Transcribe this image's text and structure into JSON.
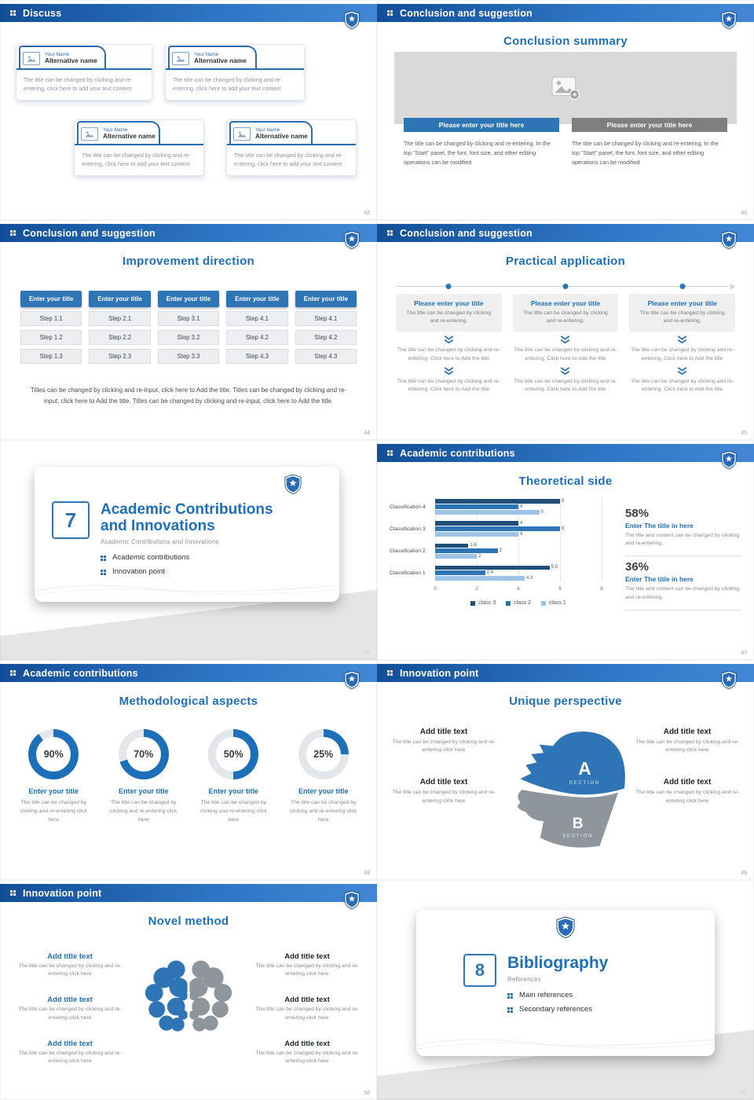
{
  "colors": {
    "primary_blue": "#1d6fba",
    "header_dark": "#134e98",
    "header_light": "#4187d6",
    "button_blue": "#2e75b6",
    "button_gray": "#7f7f7f",
    "donut_blue": "#1d6fba",
    "donut_track": "#e3e6ea"
  },
  "slides": {
    "discuss": {
      "header": "Discuss",
      "page": "42",
      "card_top_label": "Your Name",
      "card_name": "Alternative name",
      "card_body": "The title can be changed by clicking and re-entering, click here to add your text content"
    },
    "conclusion_summary": {
      "header": "Conclusion and suggestion",
      "page": "43",
      "title": "Conclusion summary",
      "button_blue": "Please enter your title here",
      "button_gray": "Please enter your title here",
      "para": "The title can be changed by clicking and re-entering. In the top \"Start\" panel, the font, font size, and other editing operations can be modified"
    },
    "improvement": {
      "header": "Conclusion and suggestion",
      "page": "44",
      "title": "Improvement direction",
      "columns": [
        {
          "title": "Enter your title",
          "steps": [
            "Step 1.1",
            "Step 1.2",
            "Step 1.3"
          ]
        },
        {
          "title": "Enter your title",
          "steps": [
            "Step 2.1",
            "Step 2.2",
            "Step 2.3"
          ]
        },
        {
          "title": "Enter your title",
          "steps": [
            "Step 3.1",
            "Step 3.2",
            "Step 3.3"
          ]
        },
        {
          "title": "Enter your title",
          "steps": [
            "Step 4.1",
            "Step 4.2",
            "Step 4.3"
          ]
        },
        {
          "title": "Enter your title",
          "steps": [
            "Step 4.1",
            "Step 4.2",
            "Step 4.3"
          ]
        }
      ],
      "footer": "Titles can be changed by clicking and re-input, click here to Add the title. Titles can be changed by clicking and re-input, click here to Add the title. Titles can be changed by clicking and re-input, click here to Add the title."
    },
    "practical": {
      "header": "Conclusion and suggestion",
      "page": "45",
      "title": "Practical application",
      "box_title": "Please enter your title",
      "box_sub": "The title can be changed by clicking and re-entering.",
      "step_text": "The title can be changed by clicking and re-entering. Click here to Add the title"
    },
    "section7": {
      "page": "46",
      "number": "7",
      "title_line1": "Academic Contributions",
      "title_line2": "and Innovations",
      "subtitle": "Academic Contributions and Innovations",
      "bullets": [
        "Academic contributions",
        "Innovation point"
      ]
    },
    "theoretical": {
      "header": "Academic contributions",
      "page": "47",
      "title": "Theoretical side",
      "chart_data": {
        "type": "bar",
        "orientation": "horizontal",
        "title": "Theoretical side",
        "categories_top_to_bottom": [
          "Classification 4",
          "Classification 3",
          "Classification 2",
          "Classification 1"
        ],
        "series": [
          {
            "name": "class 3",
            "color": "#1f4e79",
            "values": [
              6,
              4,
              1.6,
              5.5
            ]
          },
          {
            "name": "class 2",
            "color": "#2e75b6",
            "values": [
              4,
              6,
              3,
              2.4
            ]
          },
          {
            "name": "class 1",
            "color": "#9dc3e6",
            "values": [
              5,
              4,
              2,
              4.3
            ]
          }
        ],
        "xlim": [
          0,
          8
        ],
        "xticks": [
          0,
          2,
          4,
          6,
          8
        ],
        "grid": true,
        "legend_position": "bottom"
      },
      "stats": [
        {
          "pct": "58%",
          "title": "Enter The title in here",
          "body": "The title and content can be changed by clicking and re-entering."
        },
        {
          "pct": "36%",
          "title": "Enter The title in here",
          "body": "The title and content can be changed by clicking and re-entering."
        }
      ]
    },
    "methodological": {
      "header": "Academic contributions",
      "page": "48",
      "title": "Methodological aspects",
      "items": [
        {
          "percent": 90,
          "label": "90%",
          "title": "Enter your title",
          "body": "The title can be changed by clicking and re-entering click here"
        },
        {
          "percent": 70,
          "label": "70%",
          "title": "Enter your title",
          "body": "The title can be changed by clicking and re-entering click here"
        },
        {
          "percent": 50,
          "label": "50%",
          "title": "Enter your title",
          "body": "The title can be changed by clicking and re-entering click here"
        },
        {
          "percent": 25,
          "label": "25%",
          "title": "Enter your title",
          "body": "The title can be changed by clicking and re-entering click here"
        }
      ]
    },
    "unique": {
      "header": "Innovation point",
      "page": "49",
      "title": "Unique perspective",
      "section_a": "A",
      "section_a_sub": "SECTION",
      "section_b": "B",
      "section_b_sub": "SECTION",
      "item_title": "Add title text",
      "item_body": "The title can be changed by clicking and re-entering click here"
    },
    "novel": {
      "header": "Innovation point",
      "page": "50",
      "title": "Novel method",
      "item_title": "Add title text",
      "item_body": "The title can be changed by clicking and re-entering click here"
    },
    "section8": {
      "page": "51",
      "number": "8",
      "title": "Bibliography",
      "subtitle": "References",
      "bullets": [
        "Main references",
        "Secondary references"
      ]
    }
  }
}
